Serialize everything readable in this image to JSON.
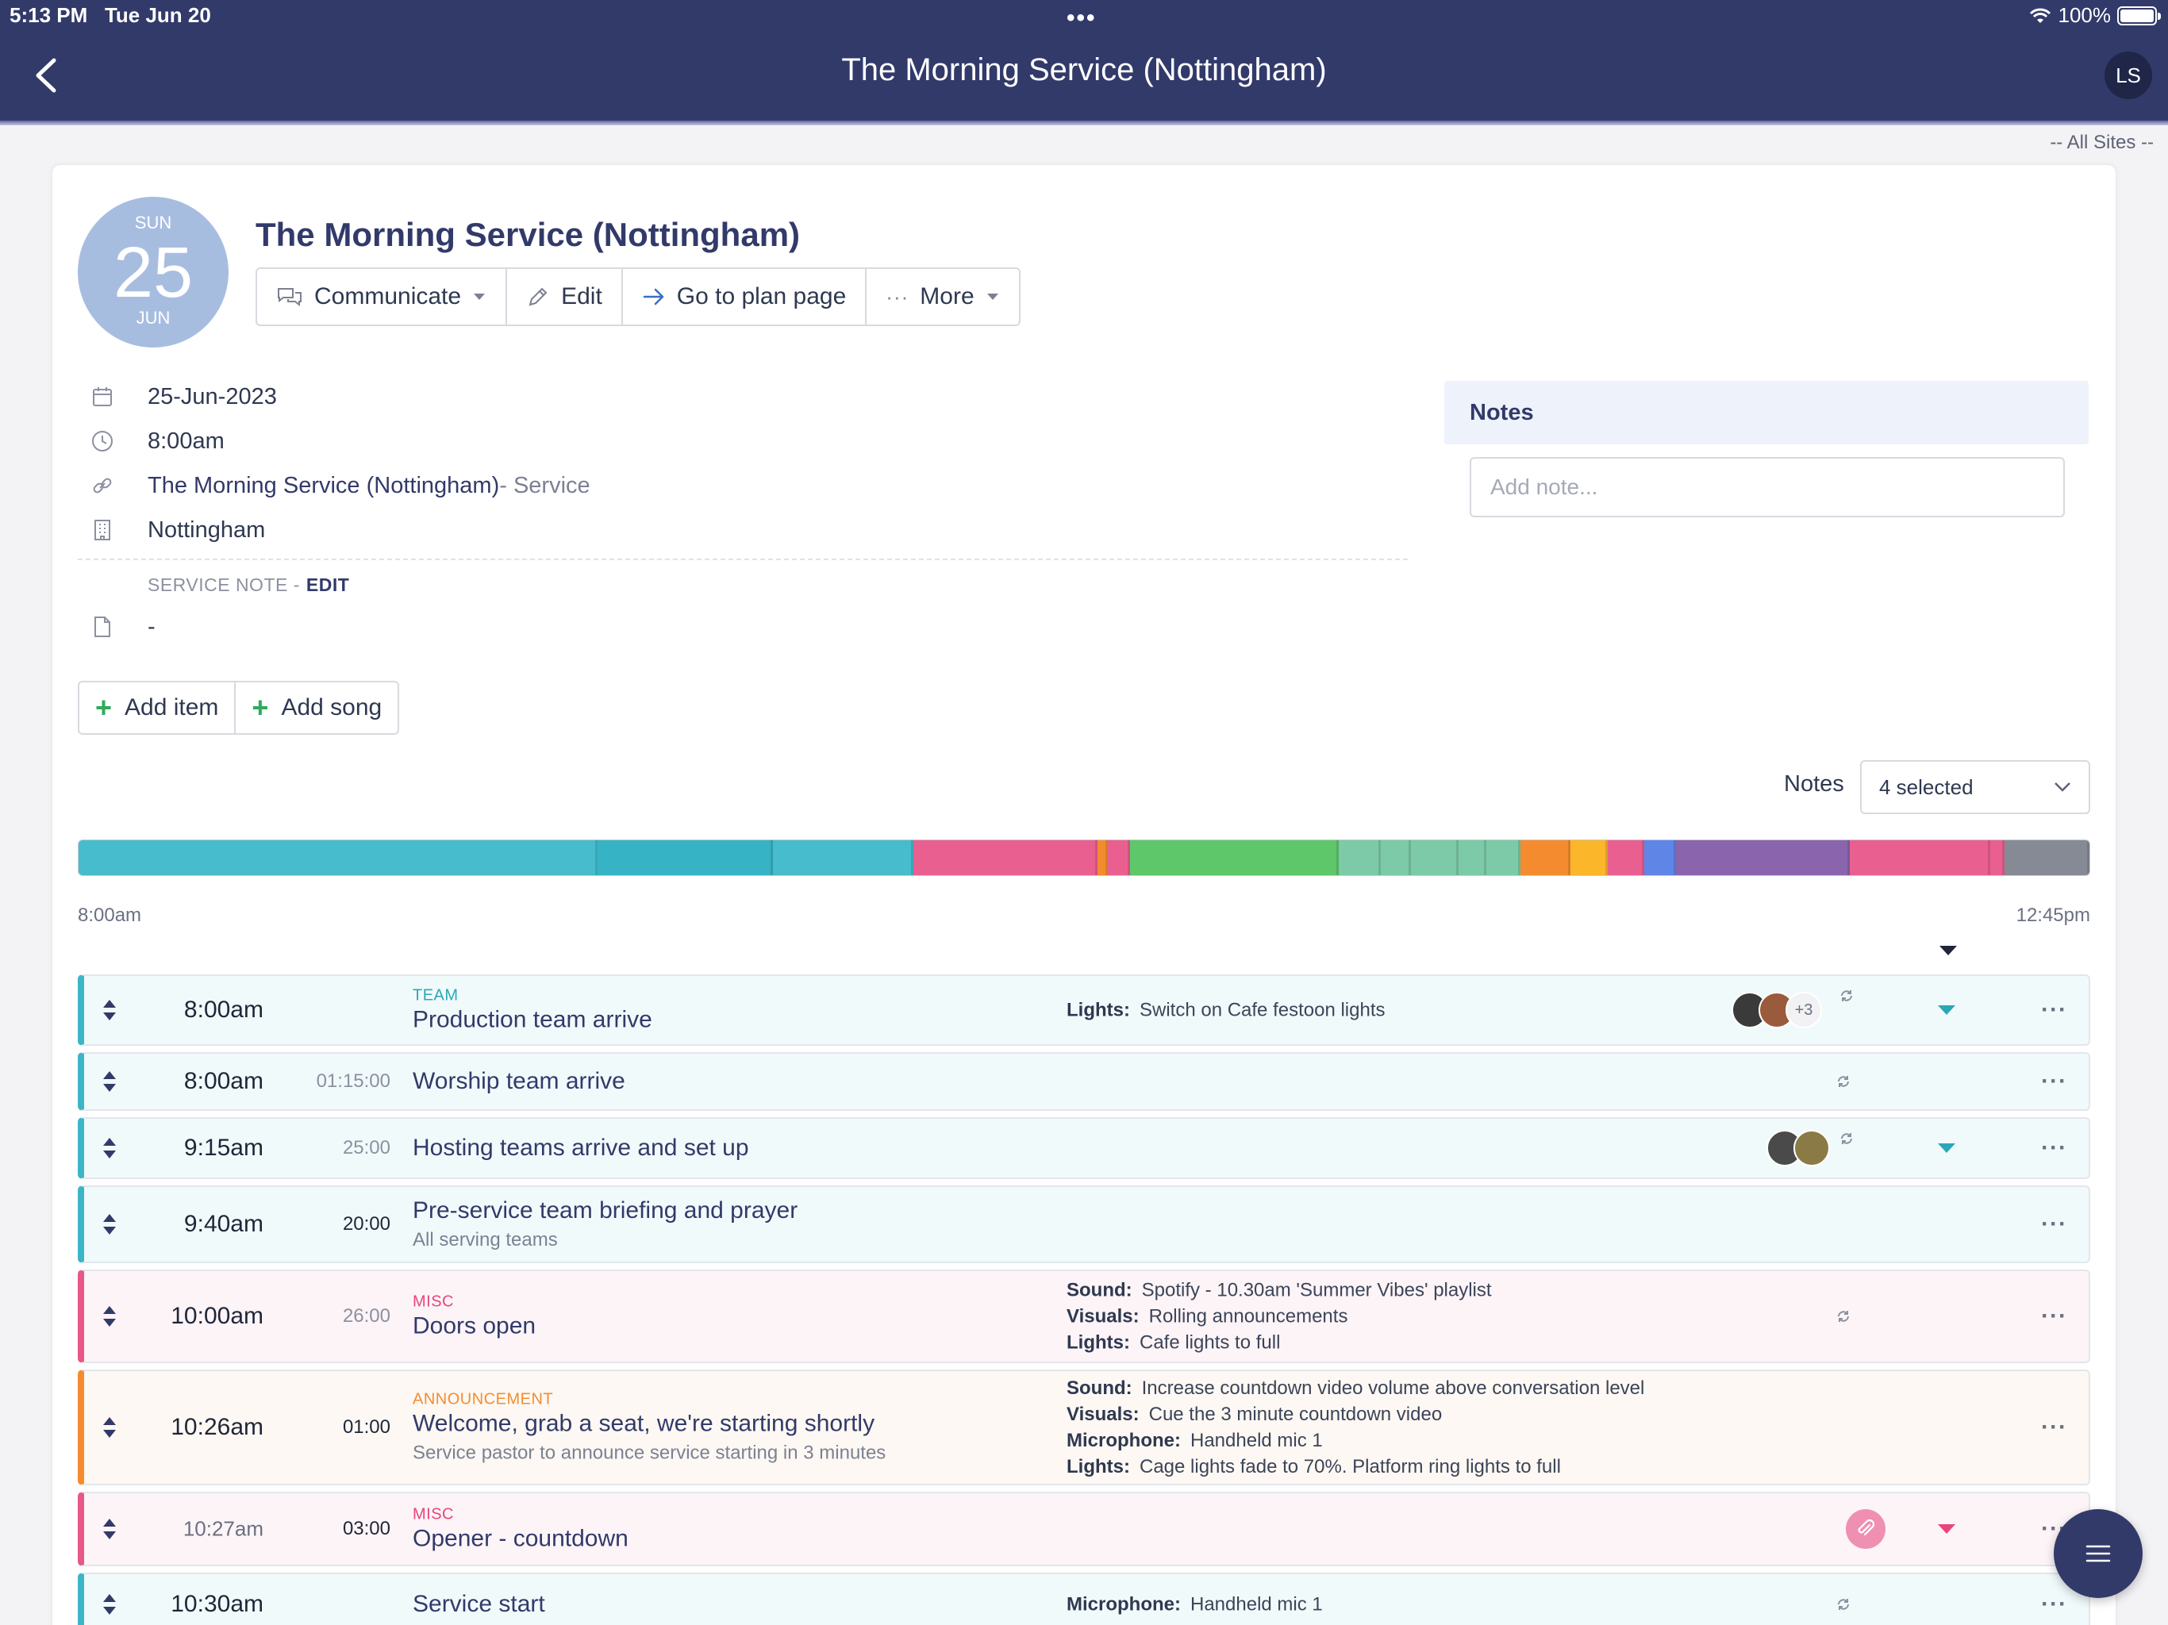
{
  "status_bar": {
    "time": "5:13 PM",
    "date": "Tue Jun 20",
    "battery": "100%"
  },
  "nav": {
    "title": "The Morning Service (Nottingham)",
    "user_initials": "LS"
  },
  "sites_filter": "-- All Sites --",
  "event": {
    "date_badge": {
      "dow": "SUN",
      "day": "25",
      "month": "JUN"
    },
    "title": "The Morning Service (Nottingham)",
    "actions": {
      "communicate": "Communicate",
      "edit": "Edit",
      "go_to_plan": "Go to plan page",
      "more": "More"
    },
    "date": "25-Jun-2023",
    "time": "8:00am",
    "service_link": "The Morning Service (Nottingham)",
    "service_type": " - Service",
    "location": "Nottingham",
    "service_note_label": "SERVICE NOTE -",
    "service_note_edit": "EDIT",
    "service_note_value": "-"
  },
  "notes_panel": {
    "title": "Notes",
    "placeholder": "Add note..."
  },
  "add_buttons": {
    "item": "Add item",
    "song": "Add song"
  },
  "notes_filter": {
    "label": "Notes",
    "selected": "4 selected"
  },
  "timeline": {
    "start": "8:00am",
    "end": "12:45pm",
    "segments": [
      {
        "color": "#46bccd",
        "w": 26.2
      },
      {
        "color": "#36b4c6",
        "w": 8.8
      },
      {
        "color": "#46bccd",
        "w": 7.0
      },
      {
        "color": "#e95f90",
        "w": 9.2
      },
      {
        "color": "#f48c2f",
        "w": 0.4
      },
      {
        "color": "#e95f90",
        "w": 1.0
      },
      {
        "color": "#5ec76a",
        "w": 10.5
      },
      {
        "color": "#7ccaa8",
        "w": 2.0
      },
      {
        "color": "#7ccaa8",
        "w": 1.4
      },
      {
        "color": "#7ccaa8",
        "w": 2.3
      },
      {
        "color": "#7ccaa8",
        "w": 1.3
      },
      {
        "color": "#7ccaa8",
        "w": 1.6
      },
      {
        "color": "#f48c2f",
        "w": 2.4
      },
      {
        "color": "#fbb62a",
        "w": 1.8
      },
      {
        "color": "#e95f90",
        "w": 1.7
      },
      {
        "color": "#5f85e6",
        "w": 1.5
      },
      {
        "color": "#8a64ad",
        "w": 8.7
      },
      {
        "color": "#e95f90",
        "w": 7.0
      },
      {
        "color": "#e95f90",
        "w": 0.6
      },
      {
        "color": "#868a94",
        "w": 4.2
      }
    ]
  },
  "rows": [
    {
      "time": "8:00am",
      "duration": "",
      "category": "TEAM",
      "name": "Production team arrive",
      "sub": "",
      "details": [
        {
          "k": "Lights:",
          "v": "Switch on Cafe festoon lights"
        }
      ],
      "avatar_extra": "+3"
    },
    {
      "time": "8:00am",
      "duration": "01:15:00",
      "category": "",
      "name": "Worship team arrive",
      "sub": "",
      "details": []
    },
    {
      "time": "9:15am",
      "duration": "25:00",
      "category": "",
      "name": "Hosting teams arrive and set up",
      "sub": "",
      "details": []
    },
    {
      "time": "9:40am",
      "duration": "20:00",
      "category": "",
      "name": "Pre-service team briefing and prayer",
      "sub": "All serving teams",
      "details": []
    },
    {
      "time": "10:00am",
      "duration": "26:00",
      "category": "MISC",
      "name": "Doors open",
      "sub": "",
      "details": [
        {
          "k": "Sound:",
          "v": "Spotify - 10.30am 'Summer Vibes' playlist"
        },
        {
          "k": "Visuals:",
          "v": "Rolling announcements"
        },
        {
          "k": "Lights:",
          "v": "Cafe lights to full"
        }
      ]
    },
    {
      "time": "10:26am",
      "duration": "01:00",
      "category": "ANNOUNCEMENT",
      "name": "Welcome, grab a seat, we're starting shortly",
      "sub": "Service pastor to announce service starting in 3 minutes",
      "details": [
        {
          "k": "Sound:",
          "v": "Increase countdown video volume above conversation level"
        },
        {
          "k": "Visuals:",
          "v": "Cue the 3 minute countdown video"
        },
        {
          "k": "Microphone:",
          "v": "Handheld mic 1"
        },
        {
          "k": "Lights:",
          "v": "Cage lights fade to 70%. Platform ring lights to full"
        }
      ]
    },
    {
      "time": "10:27am",
      "duration": "03:00",
      "category": "MISC",
      "name": "Opener - countdown",
      "sub": "",
      "details": []
    },
    {
      "time": "10:30am",
      "duration": "",
      "category": "",
      "name": "Service start",
      "sub": "",
      "details": [
        {
          "k": "Microphone:",
          "v": "Handheld mic 1"
        }
      ]
    }
  ],
  "colors": {
    "navy": "#323a6a",
    "teal": "#3ab6c6",
    "pink": "#e8578a",
    "orange": "#f48c2f",
    "green": "#2eab5e"
  },
  "icons": [
    "chevron-left-icon",
    "wifi-icon",
    "battery-icon",
    "chat-bubbles-icon",
    "pencil-icon",
    "arrow-right-icon",
    "ellipsis-icon",
    "caret-down-icon",
    "calendar-icon",
    "clock-icon",
    "link-icon",
    "building-icon",
    "document-icon",
    "plus-icon",
    "chevron-down-icon",
    "drag-handle-icon",
    "sync-icon",
    "paperclip-icon",
    "menu-icon"
  ]
}
